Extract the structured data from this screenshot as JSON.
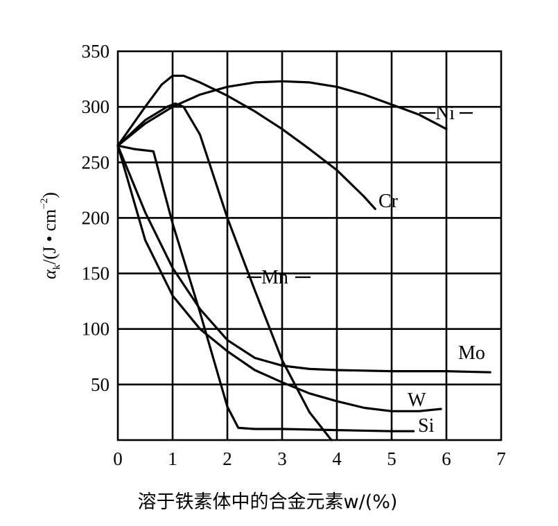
{
  "chart_data": {
    "type": "line",
    "xlabel": "溶于铁素体中的合金元素w/(%)",
    "ylabel": "αk/(J·cm⁻²)",
    "ylabel_parts": {
      "symbol": "α",
      "subscript": "k",
      "rest": "/(J • cm",
      "exponent": "−2",
      "close": ")"
    },
    "xlim": [
      0,
      7
    ],
    "ylim": [
      0,
      350
    ],
    "x_ticks": [
      "0",
      "1",
      "2",
      "3",
      "4",
      "5",
      "6",
      "7"
    ],
    "y_ticks": [
      "50",
      "100",
      "150",
      "200",
      "250",
      "300",
      "350"
    ],
    "grid": true,
    "series": [
      {
        "name": "Ni",
        "x": [
          0,
          0.5,
          1,
          1.5,
          2,
          2.5,
          3,
          3.5,
          4,
          4.5,
          5,
          5.5,
          6
        ],
        "y": [
          265,
          285,
          300,
          311,
          318,
          322,
          323,
          322,
          318,
          311,
          302,
          293,
          280
        ]
      },
      {
        "name": "Cr",
        "x": [
          0,
          0.5,
          0.8,
          1,
          1.2,
          1.5,
          2,
          2.5,
          3,
          3.5,
          4,
          4.5,
          4.7
        ],
        "y": [
          265,
          300,
          320,
          328,
          328,
          322,
          310,
          296,
          280,
          262,
          243,
          219,
          208
        ]
      },
      {
        "name": "Mn",
        "x": [
          0,
          0.5,
          0.9,
          1.05,
          1.2,
          1.5,
          2,
          2.5,
          3,
          3.5,
          3.9
        ],
        "y": [
          265,
          288,
          300,
          303,
          300,
          275,
          200,
          135,
          72,
          25,
          0
        ]
      },
      {
        "name": "Mo",
        "x": [
          0,
          0.5,
          1,
          1.5,
          2,
          2.5,
          3,
          3.5,
          4,
          5,
          6,
          6.8
        ],
        "y": [
          265,
          205,
          155,
          118,
          90,
          74,
          67,
          64,
          63,
          62,
          62,
          61
        ]
      },
      {
        "name": "W",
        "x": [
          0,
          0.5,
          1,
          1.5,
          2,
          2.5,
          3,
          3.5,
          4,
          4.5,
          5,
          5.5,
          5.9
        ],
        "y": [
          265,
          180,
          130,
          100,
          80,
          63,
          52,
          42,
          35,
          29,
          26,
          26,
          28
        ]
      },
      {
        "name": "Si",
        "x": [
          0,
          0.3,
          0.65,
          1,
          1.5,
          2,
          2.2,
          2.5,
          3,
          4,
          5,
          5.4
        ],
        "y": [
          265,
          262,
          260,
          195,
          115,
          30,
          11,
          10,
          10,
          9,
          8,
          8
        ]
      }
    ],
    "series_labels": [
      "Ni",
      "Cr",
      "Mn",
      "Mo",
      "W",
      "Si"
    ]
  }
}
